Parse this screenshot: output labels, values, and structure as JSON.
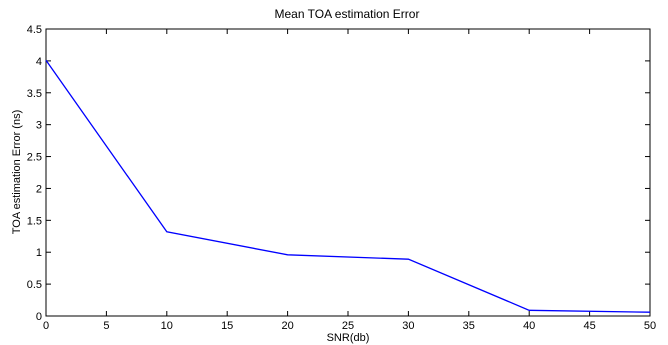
{
  "chart_data": {
    "type": "line",
    "title": "Mean TOA estimation Error",
    "xlabel": "SNR(db)",
    "ylabel": "TOA estimation Error (ns)",
    "xlim": [
      0,
      50
    ],
    "ylim": [
      0,
      4.5
    ],
    "xticks": [
      0,
      5,
      10,
      15,
      20,
      25,
      30,
      35,
      40,
      45,
      50
    ],
    "xtick_labels": [
      "0",
      "5",
      "10",
      "15",
      "20",
      "25",
      "30",
      "35",
      "40",
      "45",
      "50"
    ],
    "yticks": [
      0,
      0.5,
      1,
      1.5,
      2,
      2.5,
      3,
      3.5,
      4,
      4.5
    ],
    "ytick_labels": [
      "0",
      "0.5",
      "1",
      "1.5",
      "2",
      "2.5",
      "3",
      "3.5",
      "4",
      "4.5"
    ],
    "grid": false,
    "series": [
      {
        "color": "#0000ff",
        "x": [
          0,
          10,
          20,
          30,
          40,
          50
        ],
        "y": [
          4.01,
          1.32,
          0.96,
          0.89,
          0.09,
          0.06
        ]
      }
    ]
  }
}
